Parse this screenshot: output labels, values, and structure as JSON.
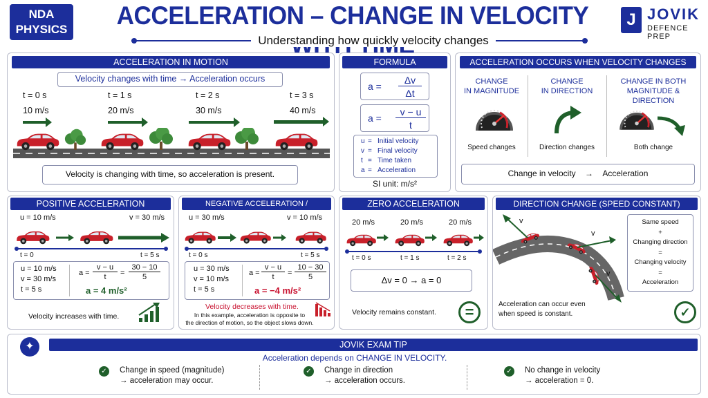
{
  "header": {
    "badge_line1": "NDA",
    "badge_line2": "PHYSICS",
    "title": "ACCELERATION – CHANGE IN VELOCITY WITH TIME",
    "subtitle": "Understanding how quickly velocity changes",
    "logo_letter": "J",
    "logo_name": "JOVIK",
    "logo_tag": "DEFENCE PREP"
  },
  "motion": {
    "heading": "ACCELERATION IN MOTION",
    "banner_left": "Velocity changes with time",
    "banner_arrow": "→",
    "banner_right": "Acceleration occurs",
    "steps": [
      {
        "t": "t = 0 s",
        "v": "10 m/s"
      },
      {
        "t": "t = 1 s",
        "v": "20 m/s"
      },
      {
        "t": "t = 2 s",
        "v": "30 m/s"
      },
      {
        "t": "t = 3 s",
        "v": "40 m/s"
      }
    ],
    "caption": "Velocity is changing with time, so acceleration is present."
  },
  "formula": {
    "heading": "FORMULA",
    "f1_lhs": "a  =",
    "f1_num": "Δv",
    "f1_den": "Δt",
    "f2_lhs": "a  =",
    "f2_num": "v − u",
    "f2_den": "t",
    "legend": [
      {
        "sym": "u",
        "eq": "=",
        "desc": "Initial velocity"
      },
      {
        "sym": "v",
        "eq": "=",
        "desc": "Final velocity"
      },
      {
        "sym": "t",
        "eq": "=",
        "desc": "Time taken"
      },
      {
        "sym": "a",
        "eq": "=",
        "desc": "Acceleration"
      }
    ],
    "si_unit": "SI unit: m/s²"
  },
  "occurs": {
    "heading": "ACCELERATION OCCURS WHEN VELOCITY CHANGES",
    "col1_title_l1": "CHANGE",
    "col1_title_l2": "IN MAGNITUDE",
    "col1_caption": "Speed changes",
    "col2_title_l1": "CHANGE",
    "col2_title_l2": "IN DIRECTION",
    "col2_caption": "Direction changes",
    "col3_title_l1": "CHANGE IN BOTH",
    "col3_title_l2": "MAGNITUDE & DIRECTION",
    "col3_caption": "Both change",
    "summary_left": "Change in velocity",
    "summary_arrow": "→",
    "summary_right": "Acceleration"
  },
  "positive": {
    "heading": "POSITIVE ACCELERATION",
    "u_label": "u = 10 m/s",
    "v_label": "v = 30 m/s",
    "t0": "t = 0",
    "t5": "t = 5 s",
    "given_u": "u = 10 m/s",
    "given_v": "v = 30 m/s",
    "given_t": "t = 5 s",
    "eq_lhs": "a =",
    "eq_num1": "v − u",
    "eq_den1": "t",
    "eq_mid": "=",
    "eq_num2": "30 − 10",
    "eq_den2": "5",
    "result": "a = 4 m/s²",
    "caption": "Velocity increases with time."
  },
  "negative": {
    "heading": "NEGATIVE ACCELERATION / RETARDATION",
    "u_label": "u = 30 m/s",
    "v_label": "v = 10 m/s",
    "t0": "t = 0 s",
    "t5": "t = 5 s",
    "given_u": "u = 30 m/s",
    "given_v": "v = 10 m/s",
    "given_t": "t = 5 s",
    "eq_lhs": "a =",
    "eq_num1": "v − u",
    "eq_den1": "t",
    "eq_mid": "=",
    "eq_num2": "10 − 30",
    "eq_den2": "5",
    "result": "a = −4 m/s²",
    "caption": "Velocity decreases with time.",
    "note_l1": "In this example, acceleration is opposite to",
    "note_l2": "the direction of motion, so the object slows down."
  },
  "zero": {
    "heading": "ZERO ACCELERATION",
    "steps": [
      {
        "v": "20 m/s",
        "t": "t = 0 s"
      },
      {
        "v": "20 m/s",
        "t": "t = 1 s"
      },
      {
        "v": "20 m/s",
        "t": "t = 2 s"
      }
    ],
    "equation": "Δv  =  0   →   a  =  0",
    "caption": "Velocity remains constant.",
    "equals_icon": "="
  },
  "direction": {
    "heading": "DIRECTION CHANGE (SPEED CONSTANT)",
    "v1": "v",
    "v2": "v",
    "v3": "v",
    "box_lines": [
      "Same speed",
      "+",
      "Changing direction",
      "=",
      "Changing velocity",
      "=",
      "Acceleration"
    ],
    "caption_l1": "Acceleration can occur even",
    "caption_l2": "when speed is constant.",
    "check": "✓"
  },
  "tip": {
    "heading": "JOVIK EXAM TIP",
    "subheading": "Acceleration depends on CHANGE IN VELOCITY.",
    "items": [
      {
        "l1": "Change in speed (magnitude)",
        "l2": "→  acceleration may occur."
      },
      {
        "l1": "Change in direction",
        "l2": "→  acceleration occurs."
      },
      {
        "l1": "No change in velocity",
        "l2": "→  acceleration = 0."
      }
    ],
    "check": "✓"
  }
}
